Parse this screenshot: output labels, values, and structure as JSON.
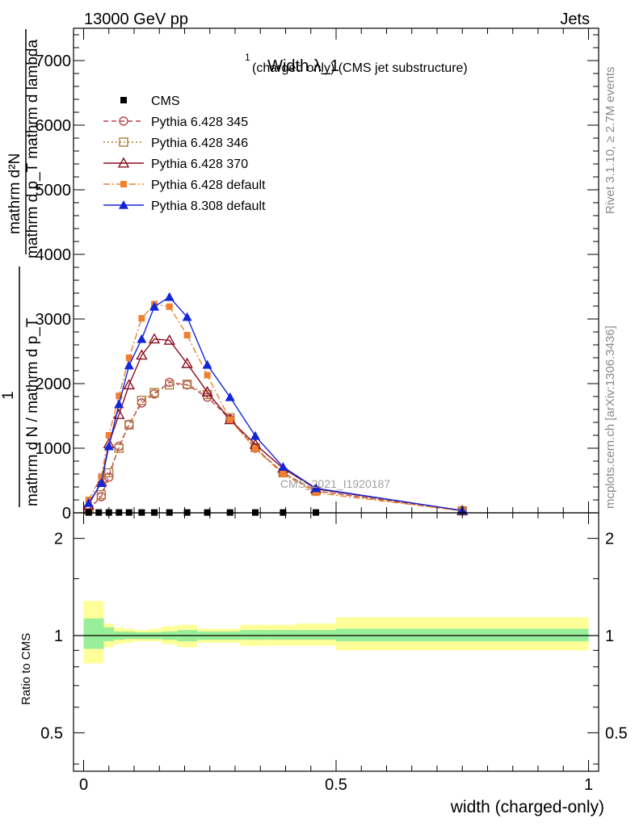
{
  "header": {
    "left": "13000 GeV pp",
    "right": "Jets"
  },
  "side": {
    "rivet": "Rivet 3.1.10, ≥ 2.7M events",
    "mcplots": "mcplots.cern.ch [arXiv:1306.3436]"
  },
  "watermark": "CMS_2021_I1920187",
  "chart_data": [
    {
      "type": "line",
      "title_main": "Width λ_1",
      "title_sup": "1",
      "title_sub": "(charged only) (CMS jet substructure)",
      "ylabel_top": "mathrm d²N",
      "ylabel_bottom": "mathrm d p_T mathrm d lambda",
      "ylabel_frac_num": "1",
      "ylabel_frac_den": "mathrm d N / mathrm d p_T",
      "xlim": [
        -0.02,
        1.02
      ],
      "ylim": [
        0,
        7500
      ],
      "yticks": [
        {
          "v": 0,
          "label": "0"
        },
        {
          "v": 1000,
          "label": "1000"
        },
        {
          "v": 2000,
          "label": "2000"
        },
        {
          "v": 3000,
          "label": "3000"
        },
        {
          "v": 4000,
          "label": "4000"
        },
        {
          "v": 5000,
          "label": "5000"
        },
        {
          "v": 6000,
          "label": "6000"
        },
        {
          "v": 7000,
          "label": "7000"
        }
      ],
      "legend_position": "top-left",
      "series": [
        {
          "name": "CMS",
          "color": "#000000",
          "marker": "square-filled",
          "line": "none",
          "x": [
            0.01,
            0.03,
            0.05,
            0.07,
            0.09,
            0.115,
            0.14,
            0.17,
            0.205,
            0.245,
            0.29,
            0.34,
            0.395,
            0.46
          ],
          "values": [
            5,
            5,
            5,
            5,
            5,
            5,
            5,
            5,
            5,
            5,
            5,
            5,
            5,
            5
          ]
        },
        {
          "name": "Pythia 6.428 345",
          "color": "#b8474f",
          "marker": "circle-open",
          "line": "dashed",
          "x": [
            0.01,
            0.035,
            0.05,
            0.07,
            0.09,
            0.115,
            0.14,
            0.17,
            0.205,
            0.245,
            0.29,
            0.34,
            0.395,
            0.46,
            0.75
          ],
          "values": [
            50,
            250,
            550,
            1030,
            1370,
            1700,
            1840,
            2020,
            1980,
            1790,
            1450,
            1000,
            620,
            340,
            30
          ]
        },
        {
          "name": "Pythia 6.428 346",
          "color": "#b07a3a",
          "marker": "square-open",
          "line": "dotted",
          "x": [
            0.01,
            0.035,
            0.05,
            0.07,
            0.09,
            0.115,
            0.14,
            0.17,
            0.205,
            0.245,
            0.29,
            0.34,
            0.395,
            0.46,
            0.75
          ],
          "values": [
            50,
            280,
            620,
            1000,
            1360,
            1740,
            1860,
            1980,
            1990,
            1830,
            1470,
            1010,
            620,
            340,
            30
          ]
        },
        {
          "name": "Pythia 6.428 370",
          "color": "#8b0e1e",
          "marker": "triangle-open",
          "line": "solid",
          "x": [
            0.01,
            0.035,
            0.05,
            0.07,
            0.09,
            0.115,
            0.14,
            0.17,
            0.205,
            0.245,
            0.29,
            0.34,
            0.395,
            0.46,
            0.75
          ],
          "values": [
            120,
            480,
            1070,
            1520,
            1980,
            2440,
            2690,
            2670,
            2310,
            1870,
            1440,
            1060,
            690,
            370,
            35
          ]
        },
        {
          "name": "Pythia 6.428 default",
          "color": "#f08030",
          "marker": "square-filled",
          "line": "dashdot",
          "x": [
            0.01,
            0.035,
            0.05,
            0.07,
            0.09,
            0.115,
            0.14,
            0.17,
            0.205,
            0.245,
            0.29,
            0.34,
            0.395,
            0.46,
            0.75
          ],
          "values": [
            200,
            560,
            1200,
            1810,
            2400,
            3010,
            3230,
            3190,
            2750,
            2130,
            1440,
            990,
            600,
            310,
            30
          ]
        },
        {
          "name": "Pythia 8.308 default",
          "color": "#1226d8",
          "marker": "triangle-filled",
          "line": "solid",
          "x": [
            0.01,
            0.035,
            0.05,
            0.07,
            0.09,
            0.115,
            0.14,
            0.17,
            0.205,
            0.245,
            0.29,
            0.34,
            0.395,
            0.46,
            0.75
          ],
          "values": [
            150,
            460,
            1030,
            1680,
            2280,
            2690,
            3190,
            3340,
            3030,
            2290,
            1790,
            1190,
            710,
            380,
            35
          ]
        }
      ]
    },
    {
      "type": "area",
      "ylabel": "Ratio to CMS",
      "xlabel": "width (charged-only)",
      "xlim": [
        -0.02,
        1.02
      ],
      "ylim": [
        0.38,
        2.4
      ],
      "log_y": true,
      "yticks": [
        {
          "v": 0.5,
          "label": "0.5"
        },
        {
          "v": 1,
          "label": "1"
        },
        {
          "v": 2,
          "label": "2"
        }
      ],
      "xticks": [
        {
          "v": 0,
          "label": "0"
        },
        {
          "v": 0.5,
          "label": "0.5"
        },
        {
          "v": 1,
          "label": "1"
        }
      ],
      "reference_line": 1,
      "bins": [
        {
          "lo": 0.0,
          "hi": 0.04,
          "stat": [
            0.91,
            1.13
          ],
          "total": [
            0.82,
            1.28
          ]
        },
        {
          "lo": 0.04,
          "hi": 0.06,
          "stat": [
            0.96,
            1.06
          ],
          "total": [
            0.92,
            1.09
          ]
        },
        {
          "lo": 0.06,
          "hi": 0.08,
          "stat": [
            0.97,
            1.03
          ],
          "total": [
            0.94,
            1.06
          ]
        },
        {
          "lo": 0.08,
          "hi": 0.1,
          "stat": [
            0.975,
            1.03
          ],
          "total": [
            0.95,
            1.05
          ]
        },
        {
          "lo": 0.1,
          "hi": 0.13,
          "stat": [
            0.975,
            1.025
          ],
          "total": [
            0.96,
            1.04
          ]
        },
        {
          "lo": 0.13,
          "hi": 0.155,
          "stat": [
            0.975,
            1.025
          ],
          "total": [
            0.96,
            1.05
          ]
        },
        {
          "lo": 0.155,
          "hi": 0.185,
          "stat": [
            0.97,
            1.03
          ],
          "total": [
            0.94,
            1.07
          ]
        },
        {
          "lo": 0.185,
          "hi": 0.225,
          "stat": [
            0.96,
            1.04
          ],
          "total": [
            0.92,
            1.08
          ]
        },
        {
          "lo": 0.225,
          "hi": 0.265,
          "stat": [
            0.97,
            1.03
          ],
          "total": [
            0.95,
            1.05
          ]
        },
        {
          "lo": 0.265,
          "hi": 0.31,
          "stat": [
            0.97,
            1.03
          ],
          "total": [
            0.95,
            1.05
          ]
        },
        {
          "lo": 0.31,
          "hi": 0.37,
          "stat": [
            0.97,
            1.04
          ],
          "total": [
            0.93,
            1.08
          ]
        },
        {
          "lo": 0.37,
          "hi": 0.42,
          "stat": [
            0.97,
            1.04
          ],
          "total": [
            0.93,
            1.08
          ]
        },
        {
          "lo": 0.42,
          "hi": 0.5,
          "stat": [
            0.97,
            1.04
          ],
          "total": [
            0.93,
            1.09
          ]
        },
        {
          "lo": 0.5,
          "hi": 1.0,
          "stat": [
            0.96,
            1.05
          ],
          "total": [
            0.9,
            1.14
          ]
        }
      ]
    }
  ]
}
